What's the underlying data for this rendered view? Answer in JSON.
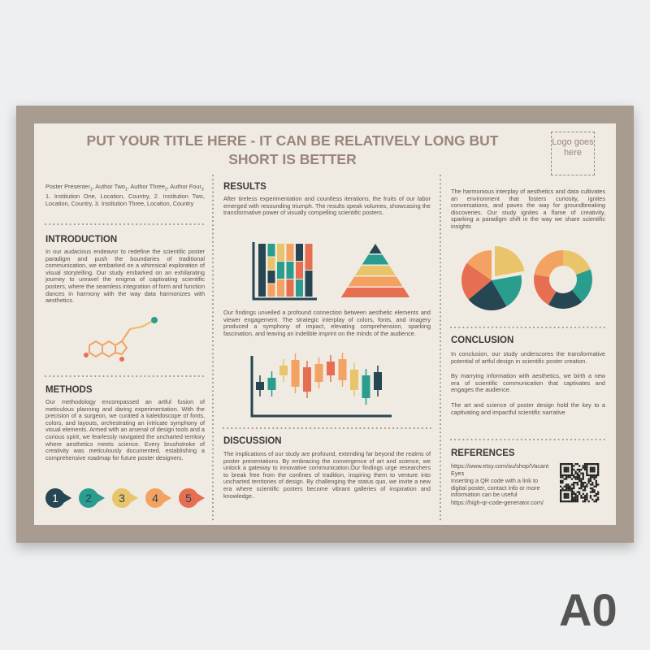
{
  "title": "PUT YOUR TITLE HERE -  IT CAN BE RELATIVELY LONG BUT SHORT IS BETTER",
  "logo": "Logo goes here",
  "authors": [
    {
      "text": "Poster Presenter",
      "sub": "1"
    },
    {
      "text": ", Author Two",
      "sub": "1"
    },
    {
      "text": ", Author Three",
      "sub": "2"
    },
    {
      "text": ", Author Four",
      "sub": "3"
    }
  ],
  "institutions": "1. Institution One, Location, Country, 2. Institution Two, Location, Country, 3. Institution Three, Location, Country",
  "introduction": {
    "heading": "INTRODUCTION",
    "text": "In our audacious endeavor to redefine the scientific poster paradigm and push the boundaries of traditional communication, we embarked on a whimsical exploration of visual storytelling. Our study embarked on an exhilarating journey to unravel the enigma of captivating scientific posters, where the seamless integration of form and function dances in harmony with the way data harmonizes with aesthetics."
  },
  "methods": {
    "heading": "METHODS",
    "text": "Our methodology encompassed an artful fusion of meticulous planning and daring experimentation. With the precision of a surgeon, we curated a kaleidoscope of fonts, colors, and layouts, orchestrating an intricate symphony of visual elements. Armed with an arsenal of design tools and a curious spirit, we fearlessly navigated the uncharted territory where aesthetics meets science. Every brushstroke of creativity was meticulously documented, establishing a comprehensive roadmap for future poster designers.",
    "steps": [
      "1",
      "2",
      "3",
      "4",
      "5"
    ]
  },
  "results": {
    "heading": "RESULTS",
    "text1": "After tireless experimentation and countless iterations, the fruits of our labor emerged with resounding triumph. The results speak volumes, showcasing the transformative power of visually compelling scientific posters.",
    "text2": "Our findings unveiled a profound connection between aesthetic elements and viewer engagement. The strategic interplay of colors, fonts, and imagery produced a symphony of impact, elevating comprehension, sparking fascination, and leaving an indelible imprint on the minds of the audience."
  },
  "discussion": {
    "heading": "DISCUSSION",
    "text": "The implications of our study are profound, extending far beyond the realms of poster presentations. By embracing the convergence of art and science, we unlock a gateway to innovative communication.Our findings urge researchers to break free from the confines of tradition, inspiring them to venture into uncharted territories of design. By challenging the status quo, we invite a new era where scientific posters become vibrant galleries of inspiration and knowledge.."
  },
  "summary": "The harmonious interplay of aesthetics and data cultivates an environment that fosters curiosity, ignites conversations, and paves the way for groundbreaking discoveries. Our study ignites a flame of creativity, sparking a paradigm shift in the way we share scientific insights",
  "conclusion": {
    "heading": "CONCLUSION",
    "paragraphs": [
      "In conclusion, our study underscores the transformative potential of artful design in scientific poster creation.",
      "By marrying information with aesthetics, we birth a new era of scientific communication that captivates and engages the audience.",
      "The art and science of poster design hold the key to a captivating and impactful scientific narrative"
    ]
  },
  "references": {
    "heading": "REFERENCES",
    "items": [
      "https://www.etsy.com/au/shop/VacantEyes",
      "Inserting a QR code with a link to digital poster, contact info or more information can be useful",
      "https://high-qr-code-generator.com/"
    ]
  },
  "size_label": "A0"
}
